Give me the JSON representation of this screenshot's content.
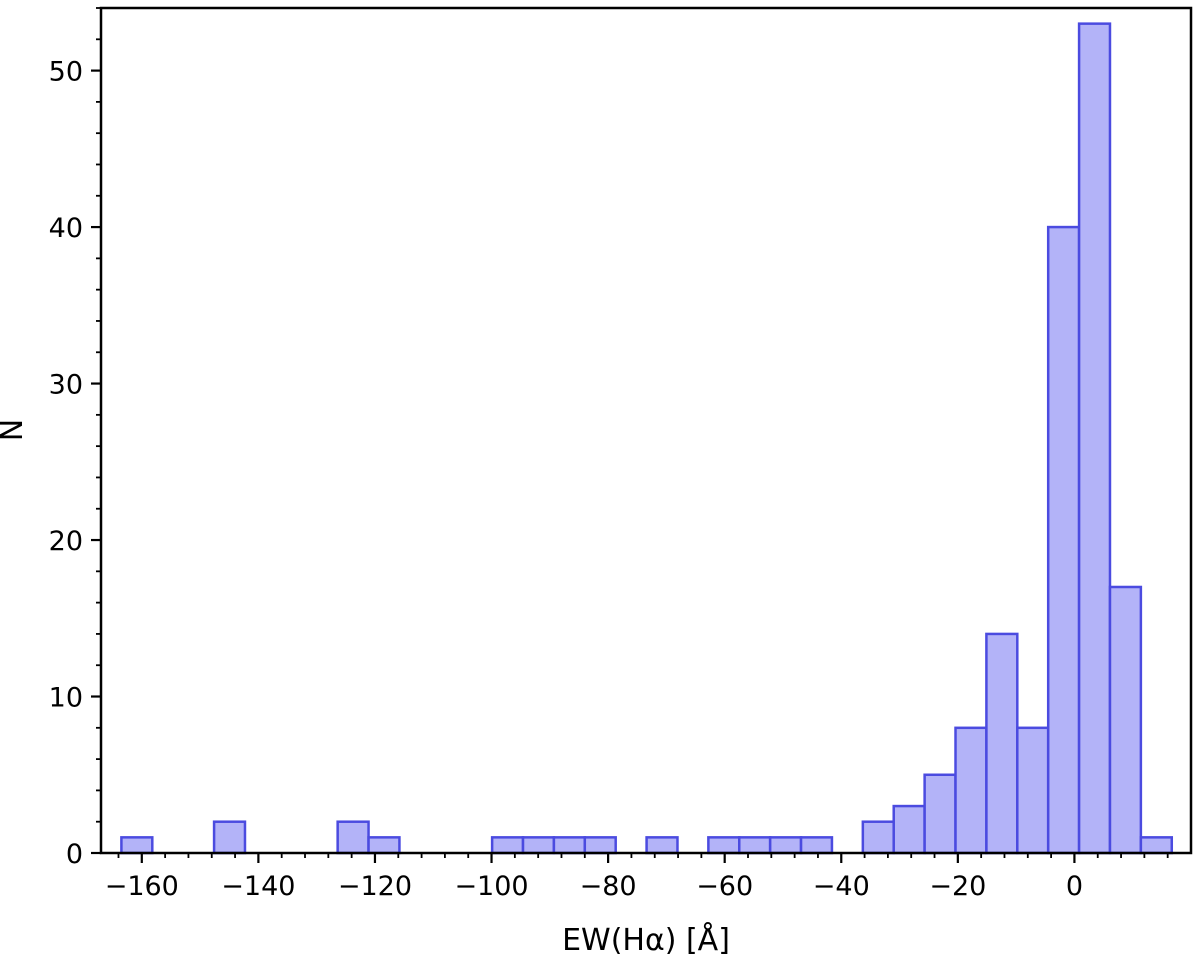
{
  "chart_data": {
    "type": "bar",
    "title": "",
    "xlabel": "EW(Hα) [Å]",
    "ylabel": "N",
    "xlim": [
      -167,
      20
    ],
    "ylim": [
      0,
      54
    ],
    "xticks": [
      -160,
      -140,
      -120,
      -100,
      -80,
      -60,
      -40,
      -20,
      0
    ],
    "xtick_labels": [
      "−160",
      "−140",
      "−120",
      "−100",
      "−80",
      "−60",
      "−40",
      "−20",
      "0"
    ],
    "yticks": [
      0,
      10,
      20,
      30,
      40,
      50
    ],
    "ytick_labels": [
      "0",
      "10",
      "20",
      "30",
      "40",
      "50"
    ],
    "bin_width": 5.3,
    "bins": [
      {
        "left": -163.5,
        "count": 1
      },
      {
        "left": -147.6,
        "count": 2
      },
      {
        "left": -126.4,
        "count": 2
      },
      {
        "left": -121.1,
        "count": 1
      },
      {
        "left": -99.9,
        "count": 1
      },
      {
        "left": -94.6,
        "count": 1
      },
      {
        "left": -89.3,
        "count": 1
      },
      {
        "left": -84.0,
        "count": 1
      },
      {
        "left": -73.4,
        "count": 1
      },
      {
        "left": -62.8,
        "count": 1
      },
      {
        "left": -57.5,
        "count": 1
      },
      {
        "left": -52.2,
        "count": 1
      },
      {
        "left": -46.9,
        "count": 1
      },
      {
        "left": -36.3,
        "count": 2
      },
      {
        "left": -31.0,
        "count": 3
      },
      {
        "left": -25.7,
        "count": 5
      },
      {
        "left": -20.4,
        "count": 8
      },
      {
        "left": -15.1,
        "count": 14
      },
      {
        "left": -9.8,
        "count": 8
      },
      {
        "left": -4.5,
        "count": 40
      },
      {
        "left": 0.8,
        "count": 53
      },
      {
        "left": 6.1,
        "count": 17
      },
      {
        "left": 11.4,
        "count": 1
      }
    ],
    "grid": false,
    "legend": "none"
  }
}
